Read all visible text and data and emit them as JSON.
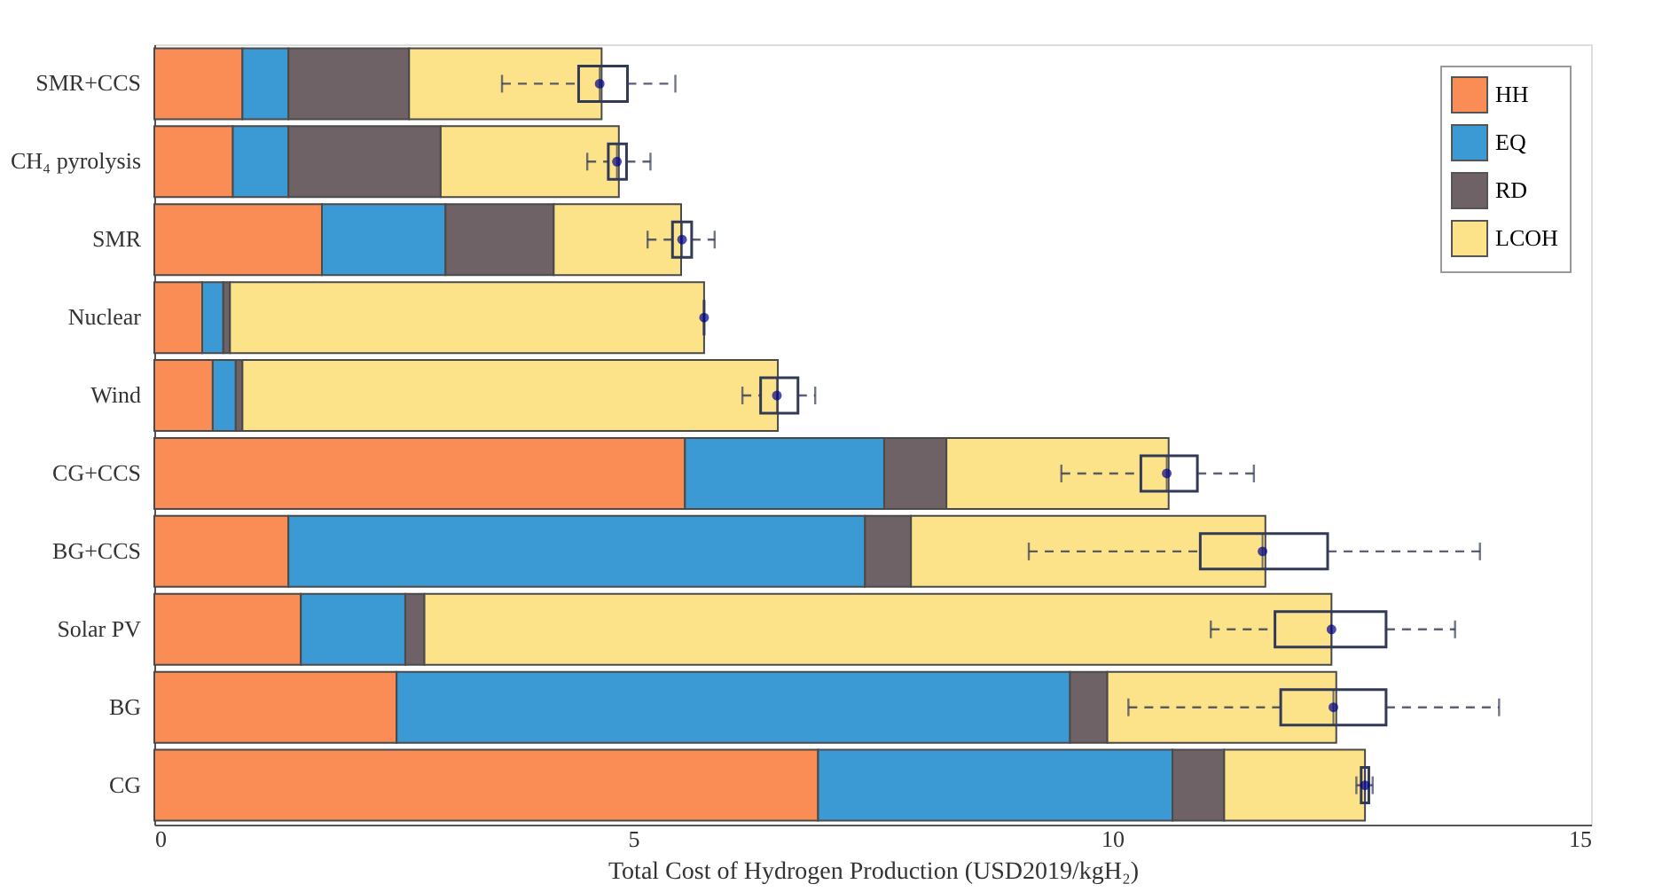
{
  "chart_data": {
    "type": "bar",
    "orientation": "horizontal",
    "stacked": true,
    "categories": [
      "SMR+CCS",
      "CH₄ pyrolysis",
      "SMR",
      "Nuclear",
      "Wind",
      "CG+CCS",
      "BG+CCS",
      "Solar PV",
      "BG",
      "CG"
    ],
    "series": [
      {
        "name": "HH",
        "color": "#f98d55",
        "values": [
          0.92,
          0.82,
          1.75,
          0.5,
          0.61,
          5.54,
          1.4,
          1.53,
          2.53,
          6.93
        ]
      },
      {
        "name": "EQ",
        "color": "#3b9ad4",
        "values": [
          0.48,
          0.58,
          1.29,
          0.22,
          0.24,
          2.08,
          6.02,
          1.09,
          7.03,
          3.7
        ]
      },
      {
        "name": "RD",
        "color": "#6e6267",
        "values": [
          1.26,
          1.59,
          1.13,
          0.07,
          0.07,
          0.65,
          0.48,
          0.2,
          0.39,
          0.54
        ]
      },
      {
        "name": "LCOH",
        "color": "#fce38a",
        "values": [
          2.01,
          1.86,
          1.33,
          4.95,
          5.59,
          2.32,
          3.7,
          9.47,
          2.39,
          1.47
        ]
      },
      {
        "type": "box",
        "color": "#333a55",
        "boxes": [
          {
            "low": 3.63,
            "q1": 4.43,
            "median": 4.65,
            "q3": 4.94,
            "high": 5.44,
            "mean": 4.65
          },
          {
            "low": 4.52,
            "q1": 4.74,
            "median": 4.83,
            "q3": 4.93,
            "high": 5.18,
            "mean": 4.83
          },
          {
            "low": 5.15,
            "q1": 5.41,
            "median": 5.51,
            "q3": 5.61,
            "high": 5.85,
            "mean": 5.51
          },
          {
            "low": 5.74,
            "q1": 5.74,
            "median": 5.74,
            "q3": 5.74,
            "high": 5.74,
            "mean": 5.74
          },
          {
            "low": 6.14,
            "q1": 6.33,
            "median": 6.5,
            "q3": 6.72,
            "high": 6.9,
            "mean": 6.5
          },
          {
            "low": 9.47,
            "q1": 10.3,
            "median": 10.57,
            "q3": 10.89,
            "high": 11.48,
            "mean": 10.57
          },
          {
            "low": 9.13,
            "q1": 10.92,
            "median": 11.57,
            "q3": 12.25,
            "high": 13.84,
            "mean": 11.57
          },
          {
            "low": 11.03,
            "q1": 11.7,
            "median": 12.29,
            "q3": 12.86,
            "high": 13.58,
            "mean": 12.29
          },
          {
            "low": 10.17,
            "q1": 11.76,
            "median": 12.31,
            "q3": 12.86,
            "high": 14.04,
            "mean": 12.31
          },
          {
            "low": 12.55,
            "q1": 12.6,
            "median": 12.64,
            "q3": 12.68,
            "high": 12.72,
            "mean": 12.64
          }
        ]
      }
    ],
    "xlabel": "Total Cost of Hydrogen Production (USD2019/kgH₂)",
    "xlim": [
      0,
      15
    ],
    "xticks": [
      0,
      5,
      10,
      15
    ],
    "grid": false,
    "legend": "top right"
  }
}
